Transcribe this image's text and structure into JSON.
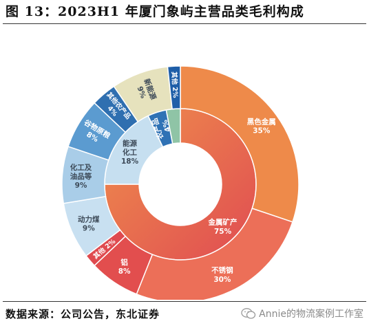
{
  "header": {
    "title": "图 13：2023H1 年厦门象屿主营品类毛利构成"
  },
  "footer": {
    "source": "数据来源：公司公告，东北证券",
    "watermark": "Annie的物流案例工作室",
    "watermark_icon": "wechat-icon"
  },
  "chart_data": {
    "type": "pie",
    "title": "图 13：2023H1 年厦门象屿主营品类毛利构成",
    "donut": true,
    "rings": [
      {
        "name": "",
        "level": "inner",
        "slices": [
          {
            "label": "金属矿产",
            "value_label": "75%",
            "value": 75,
            "color": "#e35a55"
          },
          {
            "label": "能源化工",
            "value_label": "18%",
            "value": 18,
            "color": "#c6dff0"
          },
          {
            "label": "农产品",
            "value_label": "4%",
            "value": 4,
            "color": "#2f72b5"
          },
          {
            "label": "",
            "value_label": "",
            "value": 3,
            "color": "#8fc4a6"
          }
        ]
      },
      {
        "name": "",
        "level": "outer",
        "slices": [
          {
            "label": "黑色金属",
            "value_label": "35%",
            "value": 35,
            "color": "#ee8a4a"
          },
          {
            "label": "不锈钢",
            "value_label": "30%",
            "value": 30,
            "color": "#ec6f58"
          },
          {
            "label": "铝",
            "value_label": "8%",
            "value": 8,
            "color": "#e24e4e"
          },
          {
            "label": "其他",
            "value_label": "2%",
            "value": 2,
            "color": "#df4a4f"
          },
          {
            "label": "动力煤",
            "value_label": "9%",
            "value": 9,
            "color": "#c8e0f1"
          },
          {
            "label": "化工及油品等",
            "value_label": "9%",
            "value": 9,
            "color": "#a9cde8"
          },
          {
            "label": "谷物原粮",
            "value_label": "8%",
            "value": 8,
            "color": "#5b9bd0"
          },
          {
            "label": "其他农产品",
            "value_label": "4%",
            "value": 4,
            "color": "#2f6fb0"
          },
          {
            "label": "新能源",
            "value_label": "9%",
            "value": 9,
            "color": "#e6e2bd"
          },
          {
            "label": "其他",
            "value_label": "2%",
            "value": 2,
            "color": "#1f5ea8"
          }
        ]
      }
    ]
  }
}
